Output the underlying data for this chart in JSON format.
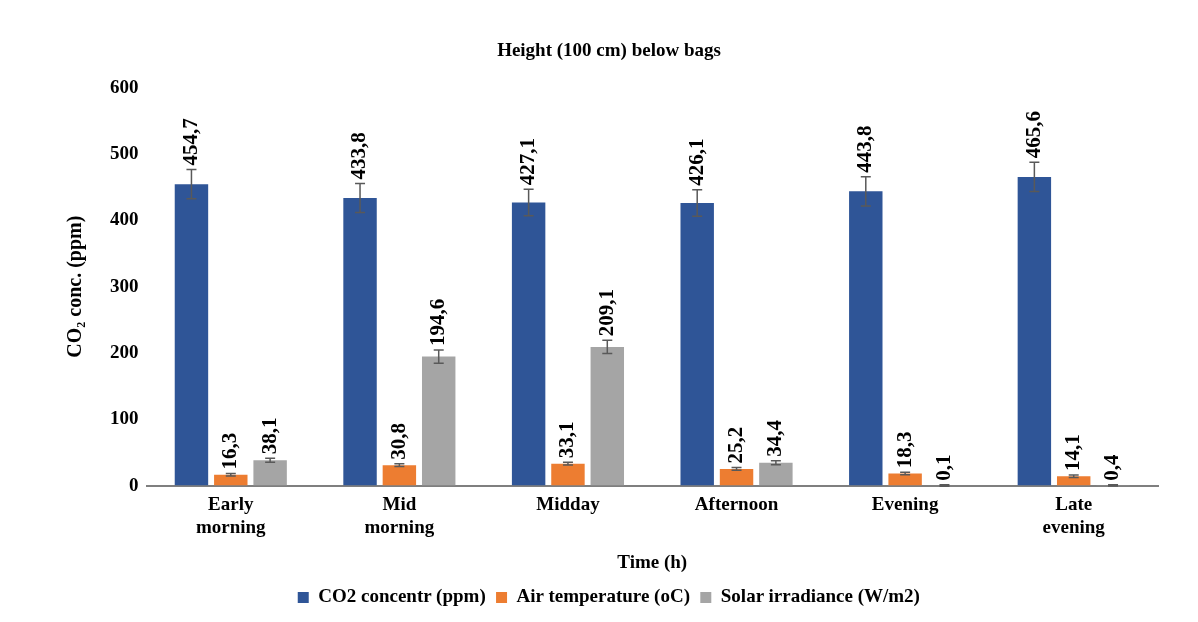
{
  "chart_data": {
    "type": "bar",
    "title": "Height (100 cm) below bags",
    "xlabel": "Time (h)",
    "ylabel": "CO₂ conc. (ppm)",
    "categories": [
      "Early morning",
      "Mid morning",
      "Midday",
      "Afternoon",
      "Evening",
      "Late evening"
    ],
    "series": [
      {
        "name": "CO2 concentr (ppm)",
        "color": "#2f5597",
        "values": [
          454.7,
          433.8,
          427.1,
          426.1,
          443.8,
          465.6
        ],
        "errors": [
          22,
          22,
          20,
          20,
          22,
          22
        ],
        "value_labels": [
          "454,7",
          "433,8",
          "427,1",
          "426,1",
          "443,8",
          "465,6"
        ]
      },
      {
        "name": "Air temperature (oC)",
        "color": "#ed7d31",
        "values": [
          16.3,
          30.8,
          33.1,
          25.2,
          18.3,
          14.1
        ],
        "errors": [
          2,
          2,
          2,
          2,
          2,
          2
        ],
        "value_labels": [
          "16,3",
          "30,8",
          "33,1",
          "25,2",
          "18,3",
          "14,1"
        ]
      },
      {
        "name": "Solar irradiance (W/m2)",
        "color": "#a5a5a5",
        "values": [
          38.1,
          194.6,
          209.1,
          34.4,
          0.1,
          0.4
        ],
        "errors": [
          3,
          10,
          10,
          3,
          1,
          1
        ],
        "value_labels": [
          "38,1",
          "194,6",
          "209,1",
          "34,4",
          "0,1",
          "0,4"
        ]
      }
    ],
    "ylim": [
      0,
      600
    ],
    "yticks": [
      0,
      100,
      200,
      300,
      400,
      500,
      600
    ],
    "grid": false,
    "legend": "bottom"
  }
}
